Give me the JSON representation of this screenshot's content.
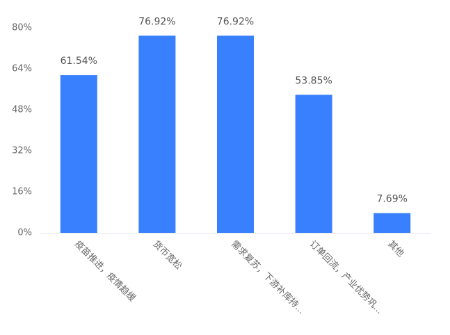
{
  "chart_data": {
    "type": "bar",
    "categories": [
      "疫苗推进，疫情趋缓",
      "货币宽松",
      "需求复苏，下游补库持...",
      "订单回流，产业优势巩...",
      "其他"
    ],
    "values": [
      61.54,
      76.92,
      76.92,
      53.85,
      7.69
    ],
    "value_labels": [
      "61.54%",
      "76.92%",
      "76.92%",
      "53.85%",
      "7.69%"
    ],
    "color": "#3880fd",
    "ylim": [
      0,
      80
    ],
    "yticks": [
      {
        "value": 0,
        "label": "0%"
      },
      {
        "value": 16,
        "label": "16%"
      },
      {
        "value": 32,
        "label": "32%"
      },
      {
        "value": 48,
        "label": "48%"
      },
      {
        "value": 64,
        "label": "64%"
      },
      {
        "value": 80,
        "label": "80%"
      }
    ]
  }
}
